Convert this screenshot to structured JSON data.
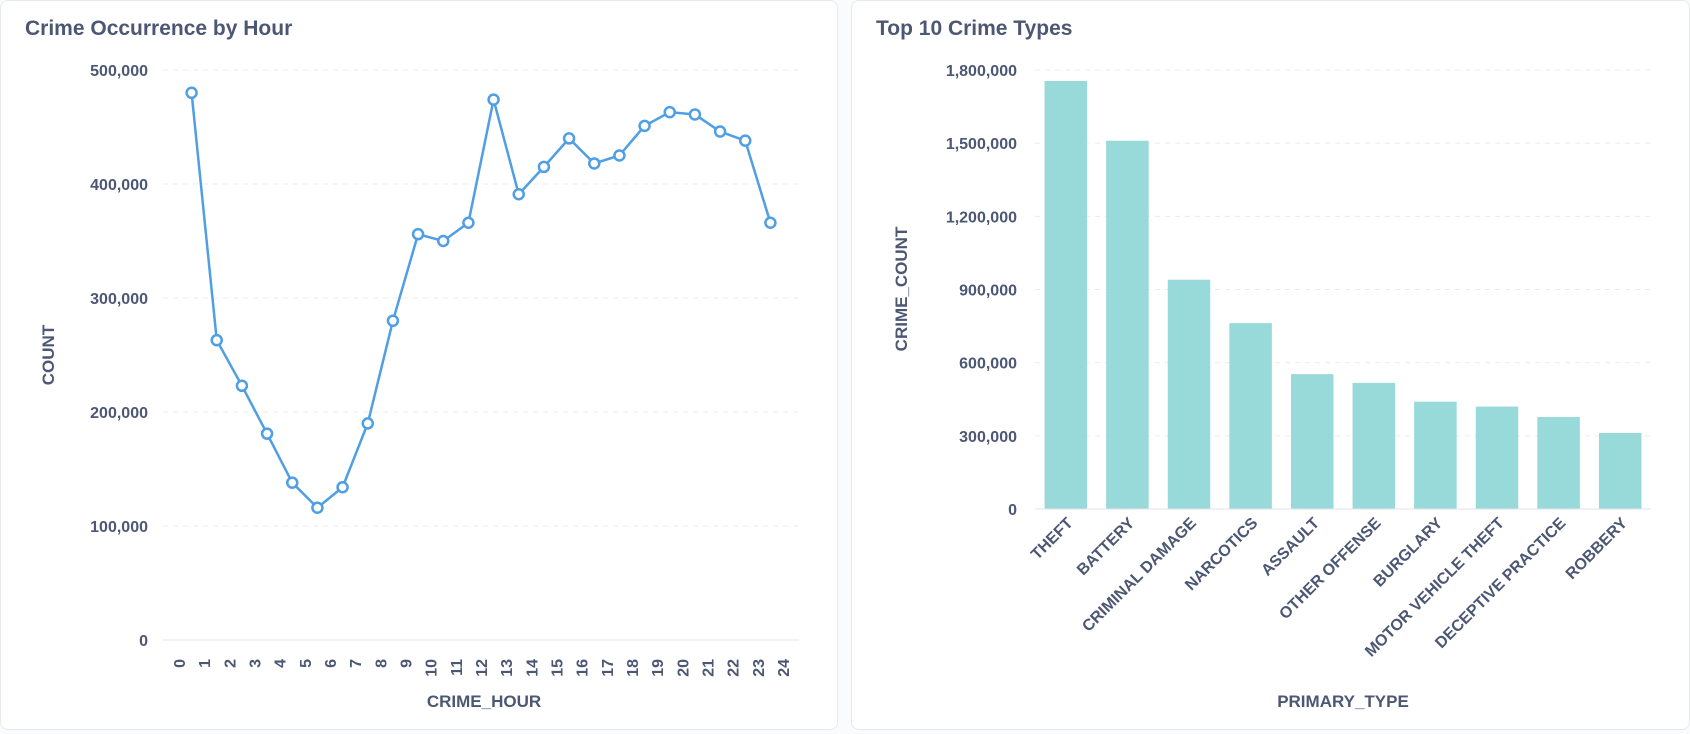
{
  "charts": [
    {
      "title": "Crime Occurrence by Hour",
      "chart_data": {
        "type": "line",
        "title": "Crime Occurrence by Hour",
        "xlabel": "CRIME_HOUR",
        "ylabel": "COUNT",
        "x_ticks": [
          "0",
          "1",
          "2",
          "3",
          "4",
          "5",
          "6",
          "7",
          "8",
          "9",
          "10",
          "11",
          "12",
          "13",
          "14",
          "15",
          "16",
          "17",
          "18",
          "19",
          "20",
          "21",
          "22",
          "23",
          "24"
        ],
        "y_ticks": [
          "0",
          "100,000",
          "200,000",
          "300,000",
          "400,000",
          "500,000"
        ],
        "ylim": [
          0,
          500000
        ],
        "xlim": [
          0,
          24
        ],
        "grid": true,
        "series": [
          {
            "x": [
              0,
              1,
              2,
              3,
              4,
              5,
              6,
              7,
              8,
              9,
              10,
              11,
              12,
              13,
              14,
              15,
              16,
              17,
              18,
              19,
              20,
              21,
              22,
              23
            ],
            "values": [
              480000,
              263000,
              223000,
              181000,
              138000,
              116000,
              134000,
              190000,
              280000,
              356000,
              350000,
              366000,
              474000,
              391000,
              415000,
              440000,
              418000,
              425000,
              451000,
              463000,
              461000,
              446000,
              438000,
              366000
            ],
            "color": "#509ee3"
          }
        ]
      }
    },
    {
      "title": "Top 10 Crime Types",
      "chart_data": {
        "type": "bar",
        "title": "Top 10 Crime Types",
        "xlabel": "PRIMARY_TYPE",
        "ylabel": "CRIME_COUNT",
        "categories": [
          "THEFT",
          "BATTERY",
          "CRIMINAL DAMAGE",
          "NARCOTICS",
          "ASSAULT",
          "OTHER OFFENSE",
          "BURGLARY",
          "MOTOR VEHICLE THEFT",
          "DECEPTIVE PRACTICE",
          "ROBBERY"
        ],
        "values": [
          1755000,
          1510000,
          940000,
          762000,
          553000,
          517000,
          440000,
          420000,
          377000,
          312000
        ],
        "y_ticks": [
          "0",
          "300,000",
          "600,000",
          "900,000",
          "1,200,000",
          "1,500,000",
          "1,800,000"
        ],
        "ylim": [
          0,
          1800000
        ],
        "grid": true,
        "color": "#98d9d9"
      }
    }
  ]
}
